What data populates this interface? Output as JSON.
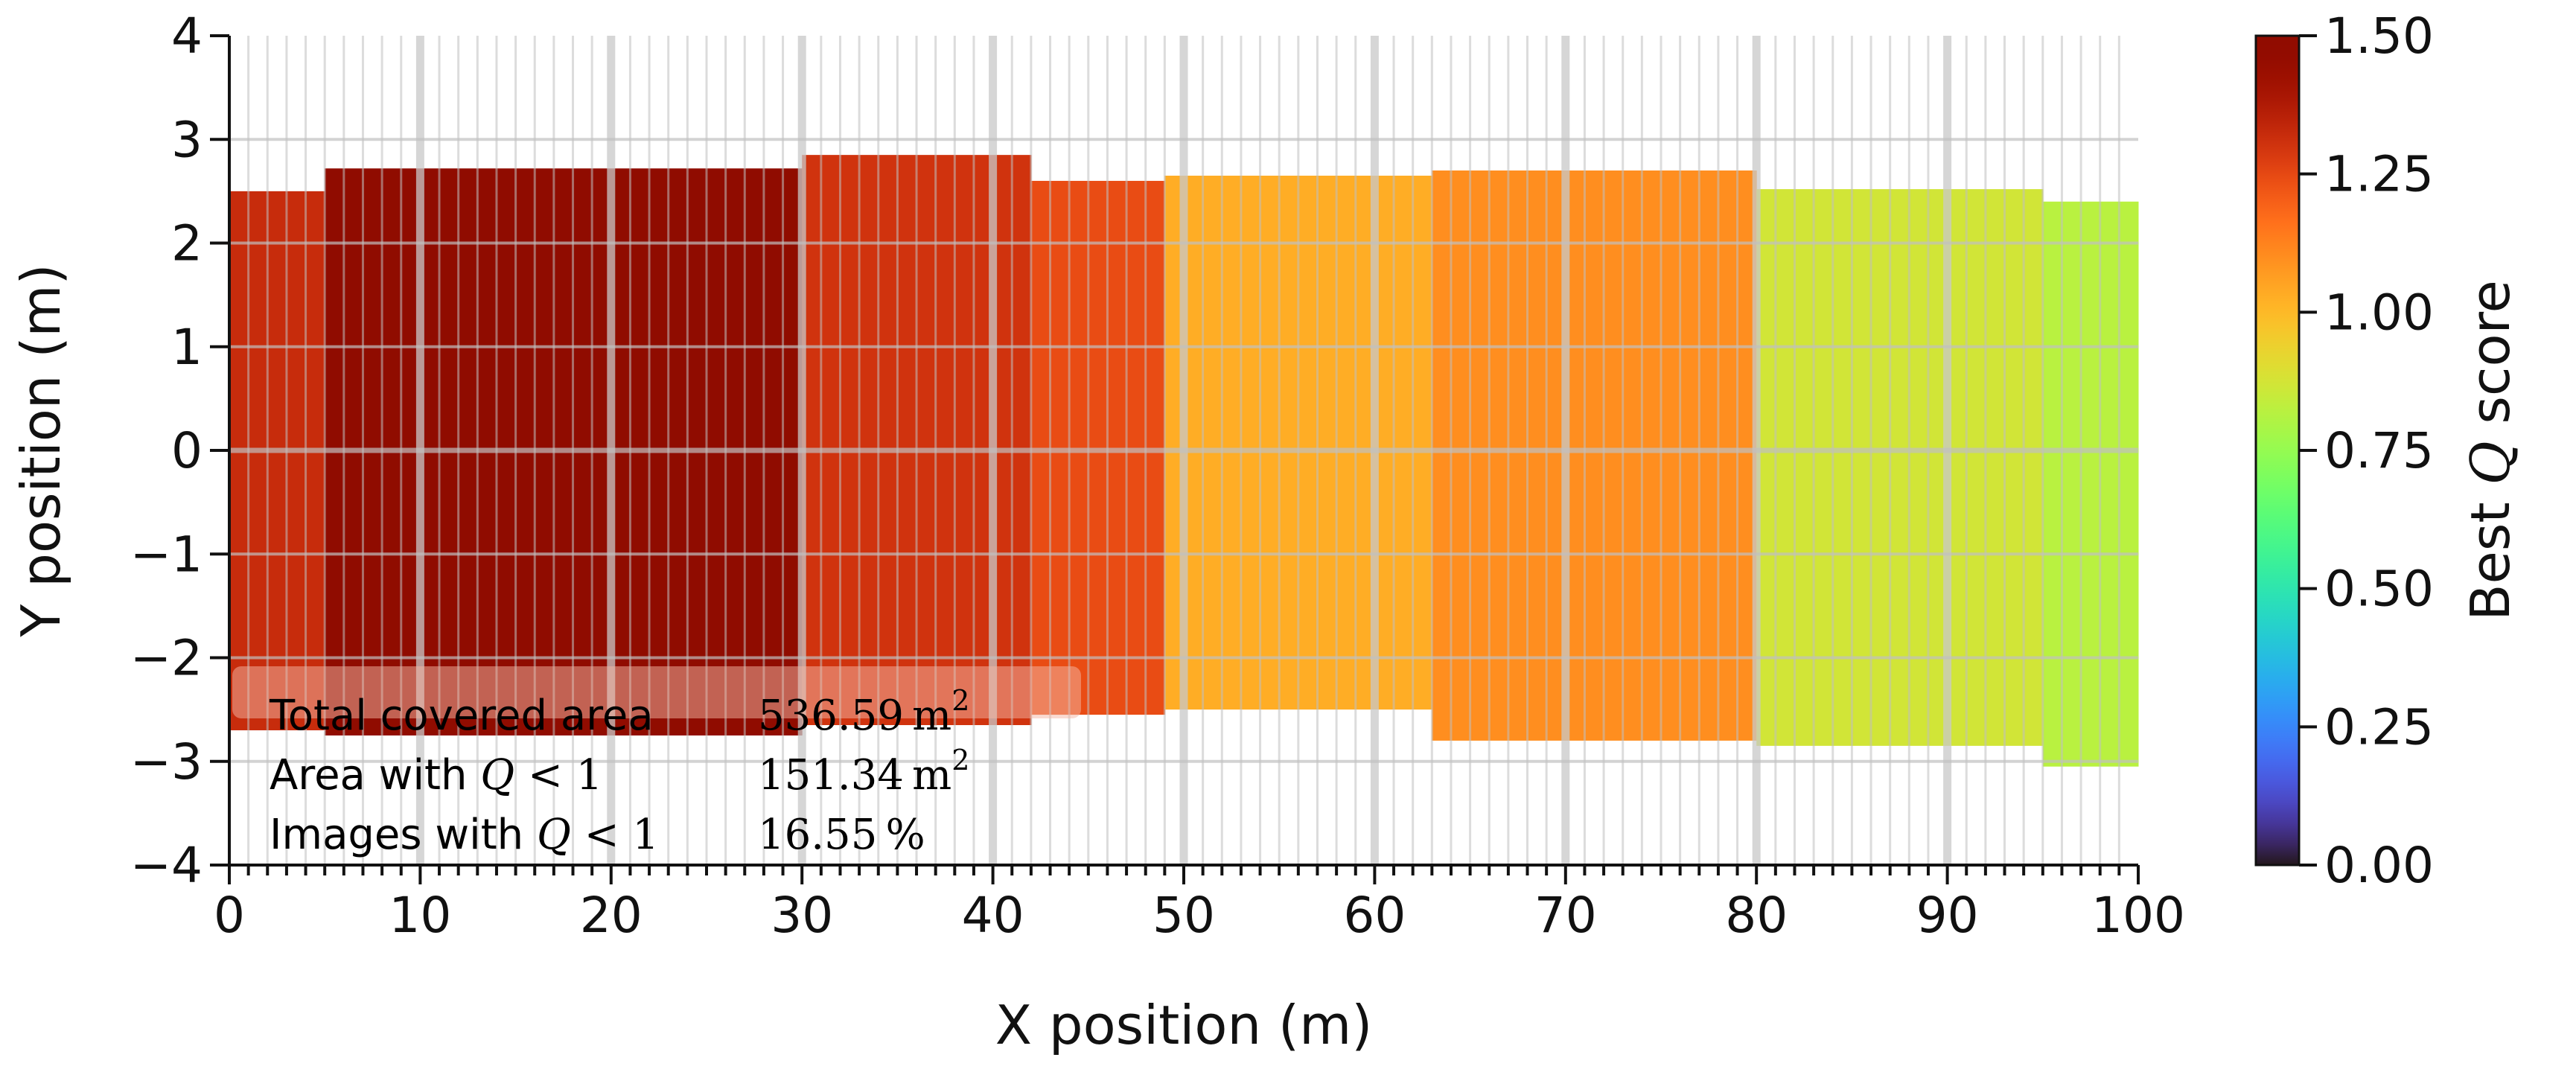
{
  "chart_data": {
    "type": "heatmap",
    "xlabel": "X position (m)",
    "ylabel": "Y position (m)",
    "xlim": [
      0,
      100
    ],
    "ylim": [
      -4,
      4
    ],
    "x_ticks": [
      0,
      10,
      20,
      30,
      40,
      50,
      60,
      70,
      80,
      90,
      100
    ],
    "y_ticks": [
      -4,
      -3,
      -2,
      -1,
      0,
      1,
      2,
      3,
      4
    ],
    "grid": true,
    "colorbar": {
      "label": "Best Q score",
      "label_prefix": "Best ",
      "label_symbol": "Q",
      "label_suffix": " score",
      "range": [
        0,
        1.5
      ],
      "ticks": [
        "0.00",
        "0.25",
        "0.50",
        "0.75",
        "1.00",
        "1.25",
        "1.50"
      ],
      "colormap": "turbo"
    },
    "segments": [
      {
        "x0": 0,
        "x1": 5,
        "q": 1.32,
        "ymin": -2.7,
        "ymax": 2.5
      },
      {
        "x0": 5,
        "x1": 30,
        "q": 1.52,
        "ymin": -2.75,
        "ymax": 2.72
      },
      {
        "x0": 30,
        "x1": 42,
        "q": 1.3,
        "ymin": -2.65,
        "ymax": 2.85
      },
      {
        "x0": 42,
        "x1": 49,
        "q": 1.24,
        "ymin": -2.55,
        "ymax": 2.6
      },
      {
        "x0": 49,
        "x1": 63,
        "q": 1.03,
        "ymin": -2.5,
        "ymax": 2.65
      },
      {
        "x0": 63,
        "x1": 80,
        "q": 1.1,
        "ymin": -2.8,
        "ymax": 2.7
      },
      {
        "x0": 80,
        "x1": 95,
        "q": 0.87,
        "ymin": -2.85,
        "ymax": 2.52
      },
      {
        "x0": 95,
        "x1": 100,
        "q": 0.82,
        "ymin": -3.05,
        "ymax": 2.4
      }
    ],
    "annotations": [
      {
        "prefix": "Total covered area",
        "symbol": "",
        "suffix": "",
        "value": "536.59",
        "unit": "m",
        "sup": "2"
      },
      {
        "prefix": "Area with ",
        "symbol": "Q",
        "suffix": " < 1",
        "value": "151.34",
        "unit": "m",
        "sup": "2"
      },
      {
        "prefix": "Images with ",
        "symbol": "Q",
        "suffix": " < 1",
        "value": "16.55",
        "unit": "%",
        "sup": ""
      }
    ]
  }
}
